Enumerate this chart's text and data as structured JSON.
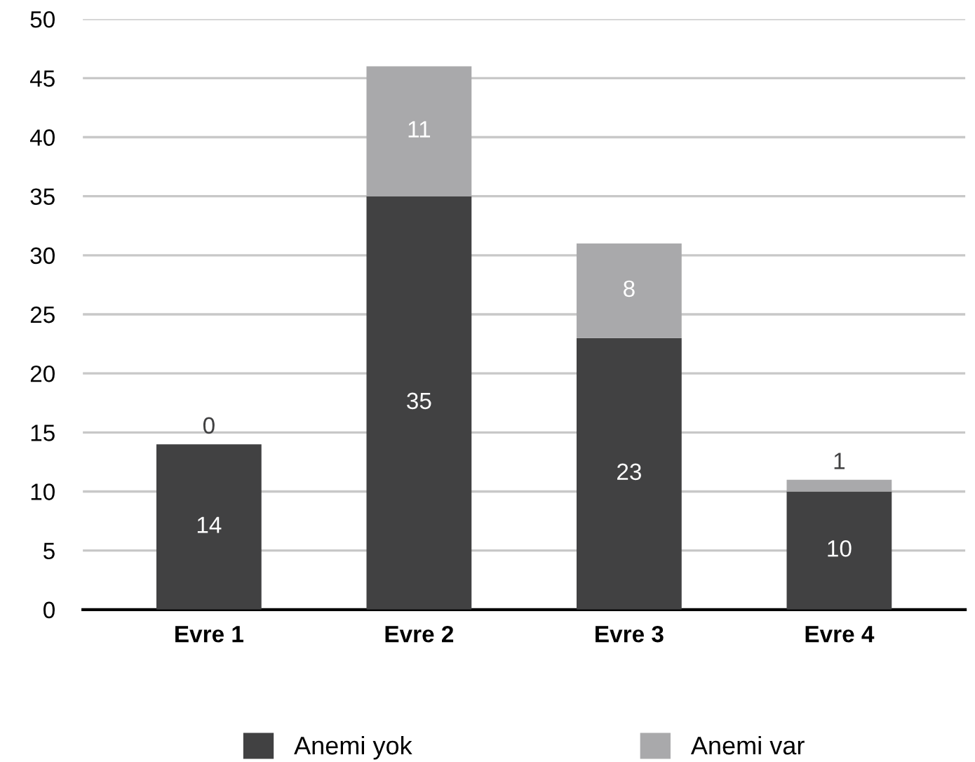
{
  "chart_data": {
    "type": "bar",
    "stacked": true,
    "categories": [
      "Evre 1",
      "Evre 2",
      "Evre 3",
      "Evre 4"
    ],
    "series": [
      {
        "name": "Anemi yok",
        "color": "#414142",
        "values": [
          14,
          35,
          23,
          10
        ]
      },
      {
        "name": "Anemi var",
        "color": "#a9a9ab",
        "values": [
          0,
          11,
          8,
          1
        ]
      }
    ],
    "ylim": [
      0,
      50
    ],
    "yticks": [
      0,
      5,
      10,
      15,
      20,
      25,
      30,
      35,
      40,
      45,
      50
    ],
    "grid": "y",
    "legend": "bottom",
    "data_labels": true
  }
}
